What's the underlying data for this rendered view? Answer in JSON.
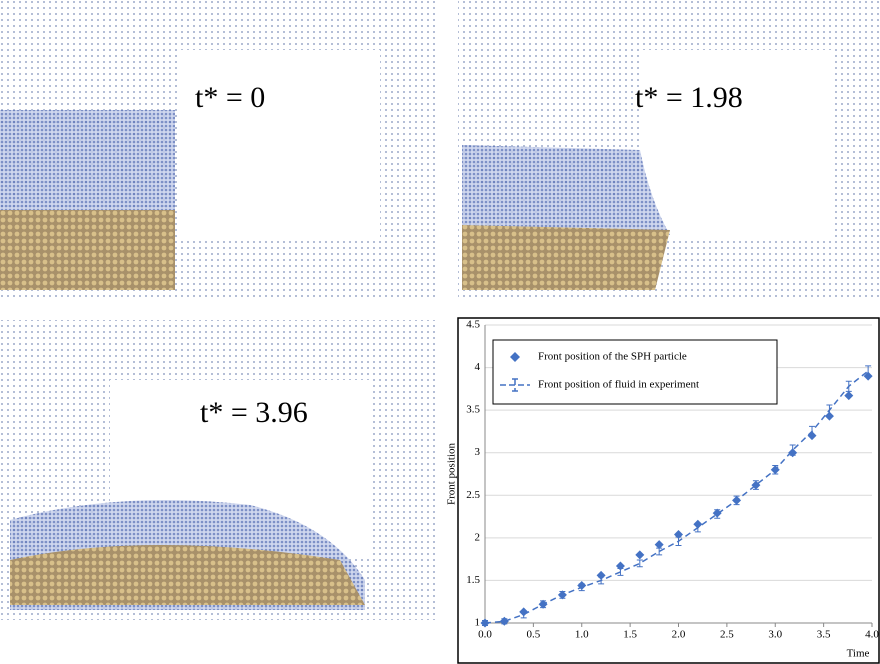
{
  "panels": [
    {
      "label": "t* = 0"
    },
    {
      "label": "t* = 1.98"
    },
    {
      "label": "t* = 3.96"
    }
  ],
  "chart_data": {
    "type": "scatter",
    "xlabel": "Time",
    "ylabel": "Front position",
    "x": [
      0,
      0.2,
      0.4,
      0.6,
      0.8,
      1.0,
      1.2,
      1.4,
      1.6,
      1.8,
      2.0,
      2.2,
      2.4,
      2.6,
      2.8,
      3.0,
      3.18,
      3.38,
      3.56,
      3.76,
      3.96
    ],
    "series": [
      {
        "name": "Front position of  the SPH particle",
        "color": "#4472c4",
        "style": "markers",
        "values": [
          1.0,
          1.02,
          1.13,
          1.22,
          1.33,
          1.44,
          1.56,
          1.67,
          1.8,
          1.92,
          2.04,
          2.16,
          2.29,
          2.44,
          2.62,
          2.8,
          3.0,
          3.2,
          3.43,
          3.67,
          3.9
        ]
      },
      {
        "name": "Front position of fluid in experiment",
        "color": "#4472c4",
        "style": "dashed-errorbar",
        "values": [
          1.0,
          1.02,
          1.1,
          1.22,
          1.33,
          1.42,
          1.5,
          1.6,
          1.7,
          1.84,
          1.96,
          2.12,
          2.28,
          2.44,
          2.62,
          2.8,
          3.03,
          3.25,
          3.5,
          3.78,
          3.96
        ],
        "errors": [
          0.03,
          0.03,
          0.04,
          0.04,
          0.04,
          0.04,
          0.04,
          0.04,
          0.04,
          0.04,
          0.05,
          0.05,
          0.05,
          0.05,
          0.05,
          0.05,
          0.06,
          0.06,
          0.06,
          0.06,
          0.06
        ]
      }
    ],
    "xlim": [
      0,
      4
    ],
    "ylim": [
      1,
      4.5
    ],
    "xticks": [
      {
        "value": 0,
        "label": "0.0"
      },
      0.5,
      {
        "value": 1,
        "label": "1.0"
      },
      1.5,
      {
        "value": 2,
        "label": "2.0"
      },
      2.5,
      {
        "value": 3,
        "label": "3.0"
      },
      3.5,
      {
        "value": 4,
        "label": "4.0"
      }
    ],
    "yticks": [
      1,
      1.5,
      2,
      2.5,
      3,
      3.5,
      4,
      4.5
    ],
    "grid": true
  }
}
